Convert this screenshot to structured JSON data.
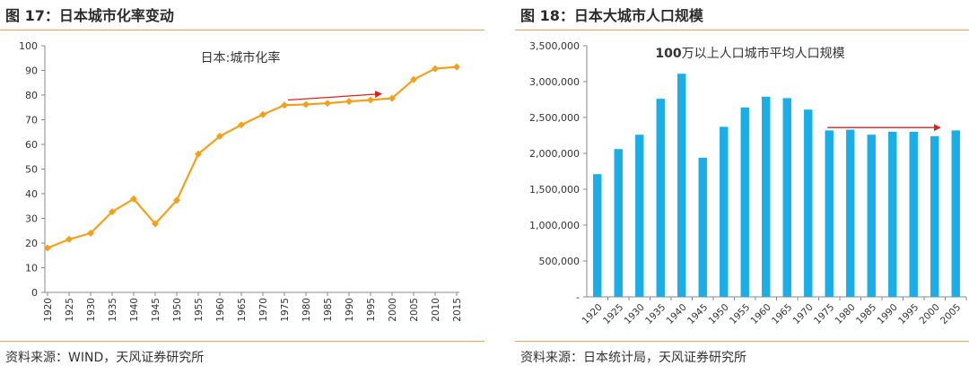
{
  "left": {
    "figure_title": "图 17：日本城市化率变动",
    "source": "资料来源：WIND，天风证券研究所"
  },
  "right": {
    "figure_title": "图 18：日本大城市人口规模",
    "source": "资料来源：日本统计局，天风证券研究所"
  },
  "colors": {
    "line": "#f5a01a",
    "bar": "#1aaee8",
    "arrow": "#e0201a",
    "rule": "#f0a050"
  },
  "chart_data": [
    {
      "type": "line",
      "title": "日本:城市化率",
      "xlabel": "",
      "ylabel": "",
      "x": [
        "1920",
        "1925",
        "1930",
        "1935",
        "1940",
        "1945",
        "1950",
        "1955",
        "1960",
        "1965",
        "1970",
        "1975",
        "1980",
        "1985",
        "1990",
        "1995",
        "2000",
        "2005",
        "2010",
        "2015"
      ],
      "values": [
        18,
        21.5,
        24,
        32.7,
        37.9,
        27.8,
        37.3,
        56.1,
        63.3,
        67.9,
        72.1,
        75.9,
        76.2,
        76.7,
        77.4,
        78,
        78.7,
        86.3,
        90.7,
        91.4
      ],
      "ylim": [
        0,
        100
      ],
      "yticks": [
        "0",
        "10",
        "20",
        "30",
        "40",
        "50",
        "60",
        "70",
        "80",
        "90",
        "100"
      ],
      "annotation": {
        "type": "arrow",
        "from": [
          "1975",
          78
        ],
        "to": [
          "1995",
          80.5
        ]
      },
      "legend": "none",
      "grid": false
    },
    {
      "type": "bar",
      "title": "100万以上人口城市平均人口规模",
      "title_bold_prefix": "100",
      "title_rest": "万以上人口城市平均人口规模",
      "xlabel": "",
      "ylabel": "",
      "categories": [
        "1920",
        "1925",
        "1930",
        "1935",
        "1940",
        "1945",
        "1950",
        "1955",
        "1960",
        "1965",
        "1970",
        "1975",
        "1980",
        "1985",
        "1990",
        "1995",
        "2000",
        "2005"
      ],
      "values": [
        1710000,
        2060000,
        2260000,
        2760000,
        3110000,
        1940000,
        2370000,
        2640000,
        2790000,
        2770000,
        2610000,
        2320000,
        2330000,
        2260000,
        2300000,
        2300000,
        2240000,
        2320000
      ],
      "ylim": [
        0,
        3500000
      ],
      "yticks": [
        "-",
        "500,000",
        "1,000,000",
        "1,500,000",
        "2,000,000",
        "2,500,000",
        "3,000,000",
        "3,500,000"
      ],
      "annotation": {
        "type": "arrow",
        "from": [
          "1975",
          2360000
        ],
        "to": [
          "2000",
          2360000
        ]
      },
      "legend": "none",
      "grid": false
    }
  ]
}
